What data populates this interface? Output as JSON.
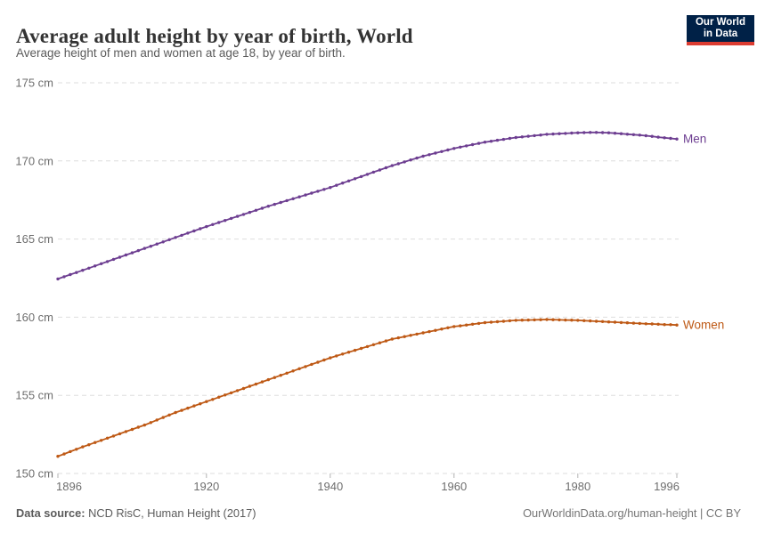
{
  "header": {
    "title": "Average adult height by year of birth, World",
    "subtitle": "Average height of men and women at age 18, by year of birth.",
    "logo": {
      "line1": "Our World",
      "line2": "in Data",
      "background": "#002147",
      "accent": "#dc3c31",
      "text_color": "#ffffff"
    }
  },
  "footer": {
    "source_label": "Data source:",
    "source_value": " NCD RisC, Human Height (2017)",
    "credit": "OurWorldinData.org/human-height | CC BY"
  },
  "chart_data": {
    "type": "line",
    "title": "Average adult height by year of birth, World",
    "xlabel": "",
    "ylabel": "",
    "x_start": 1896,
    "x_end": 1996,
    "x_ticks": [
      1896,
      1920,
      1940,
      1960,
      1980,
      1996
    ],
    "y_ticks": [
      150,
      155,
      160,
      165,
      170,
      175
    ],
    "y_tick_suffix": " cm",
    "ylim": [
      150,
      175
    ],
    "grid": "horizontal-dashed",
    "grid_color": "#dedede",
    "axis_text_color": "#6e6e6e",
    "tick_mark_color": "#b3b3b3",
    "legend_position": "line-end-labels",
    "marker": "yearly-dots",
    "series": [
      {
        "name": "Men",
        "color": "#6D3E91",
        "values": [
          162.45,
          162.59,
          162.73,
          162.86,
          163,
          163.14,
          163.28,
          163.42,
          163.56,
          163.7,
          163.84,
          163.98,
          164.12,
          164.26,
          164.4,
          164.54,
          164.68,
          164.82,
          164.96,
          165.1,
          165.24,
          165.38,
          165.52,
          165.66,
          165.8,
          165.93,
          166.06,
          166.19,
          166.32,
          166.45,
          166.58,
          166.71,
          166.84,
          166.97,
          167.1,
          167.22,
          167.34,
          167.46,
          167.58,
          167.7,
          167.82,
          167.94,
          168.06,
          168.18,
          168.3,
          168.44,
          168.58,
          168.72,
          168.86,
          169,
          169.14,
          169.28,
          169.42,
          169.56,
          169.7,
          169.82,
          169.94,
          170.06,
          170.18,
          170.3,
          170.4,
          170.5,
          170.6,
          170.7,
          170.8,
          170.88,
          170.96,
          171.04,
          171.12,
          171.2,
          171.26,
          171.32,
          171.38,
          171.44,
          171.5,
          171.54,
          171.58,
          171.62,
          171.66,
          171.7,
          171.72,
          171.74,
          171.76,
          171.78,
          171.8,
          171.81,
          171.82,
          171.82,
          171.81,
          171.8,
          171.77,
          171.74,
          171.71,
          171.68,
          171.65,
          171.61,
          171.57,
          171.52,
          171.48,
          171.44,
          171.4
        ]
      },
      {
        "name": "Women",
        "color": "#BE5915",
        "values": [
          151.1,
          151.25,
          151.4,
          151.55,
          151.7,
          151.84,
          151.98,
          152.12,
          152.26,
          152.4,
          152.54,
          152.68,
          152.82,
          152.96,
          153.1,
          153.26,
          153.42,
          153.58,
          153.74,
          153.9,
          154.04,
          154.18,
          154.32,
          154.46,
          154.6,
          154.74,
          154.88,
          155.02,
          155.16,
          155.3,
          155.44,
          155.58,
          155.72,
          155.86,
          156,
          156.14,
          156.28,
          156.42,
          156.56,
          156.7,
          156.84,
          156.98,
          157.12,
          157.26,
          157.4,
          157.52,
          157.64,
          157.76,
          157.88,
          158,
          158.12,
          158.24,
          158.36,
          158.48,
          158.6,
          158.68,
          158.76,
          158.84,
          158.92,
          159,
          159.08,
          159.16,
          159.24,
          159.32,
          159.4,
          159.45,
          159.5,
          159.55,
          159.6,
          159.65,
          159.68,
          159.71,
          159.74,
          159.77,
          159.8,
          159.81,
          159.82,
          159.83,
          159.84,
          159.85,
          159.84,
          159.83,
          159.82,
          159.81,
          159.8,
          159.78,
          159.76,
          159.74,
          159.72,
          159.7,
          159.68,
          159.66,
          159.64,
          159.62,
          159.6,
          159.58,
          159.57,
          159.55,
          159.53,
          159.52,
          159.5
        ]
      }
    ]
  }
}
